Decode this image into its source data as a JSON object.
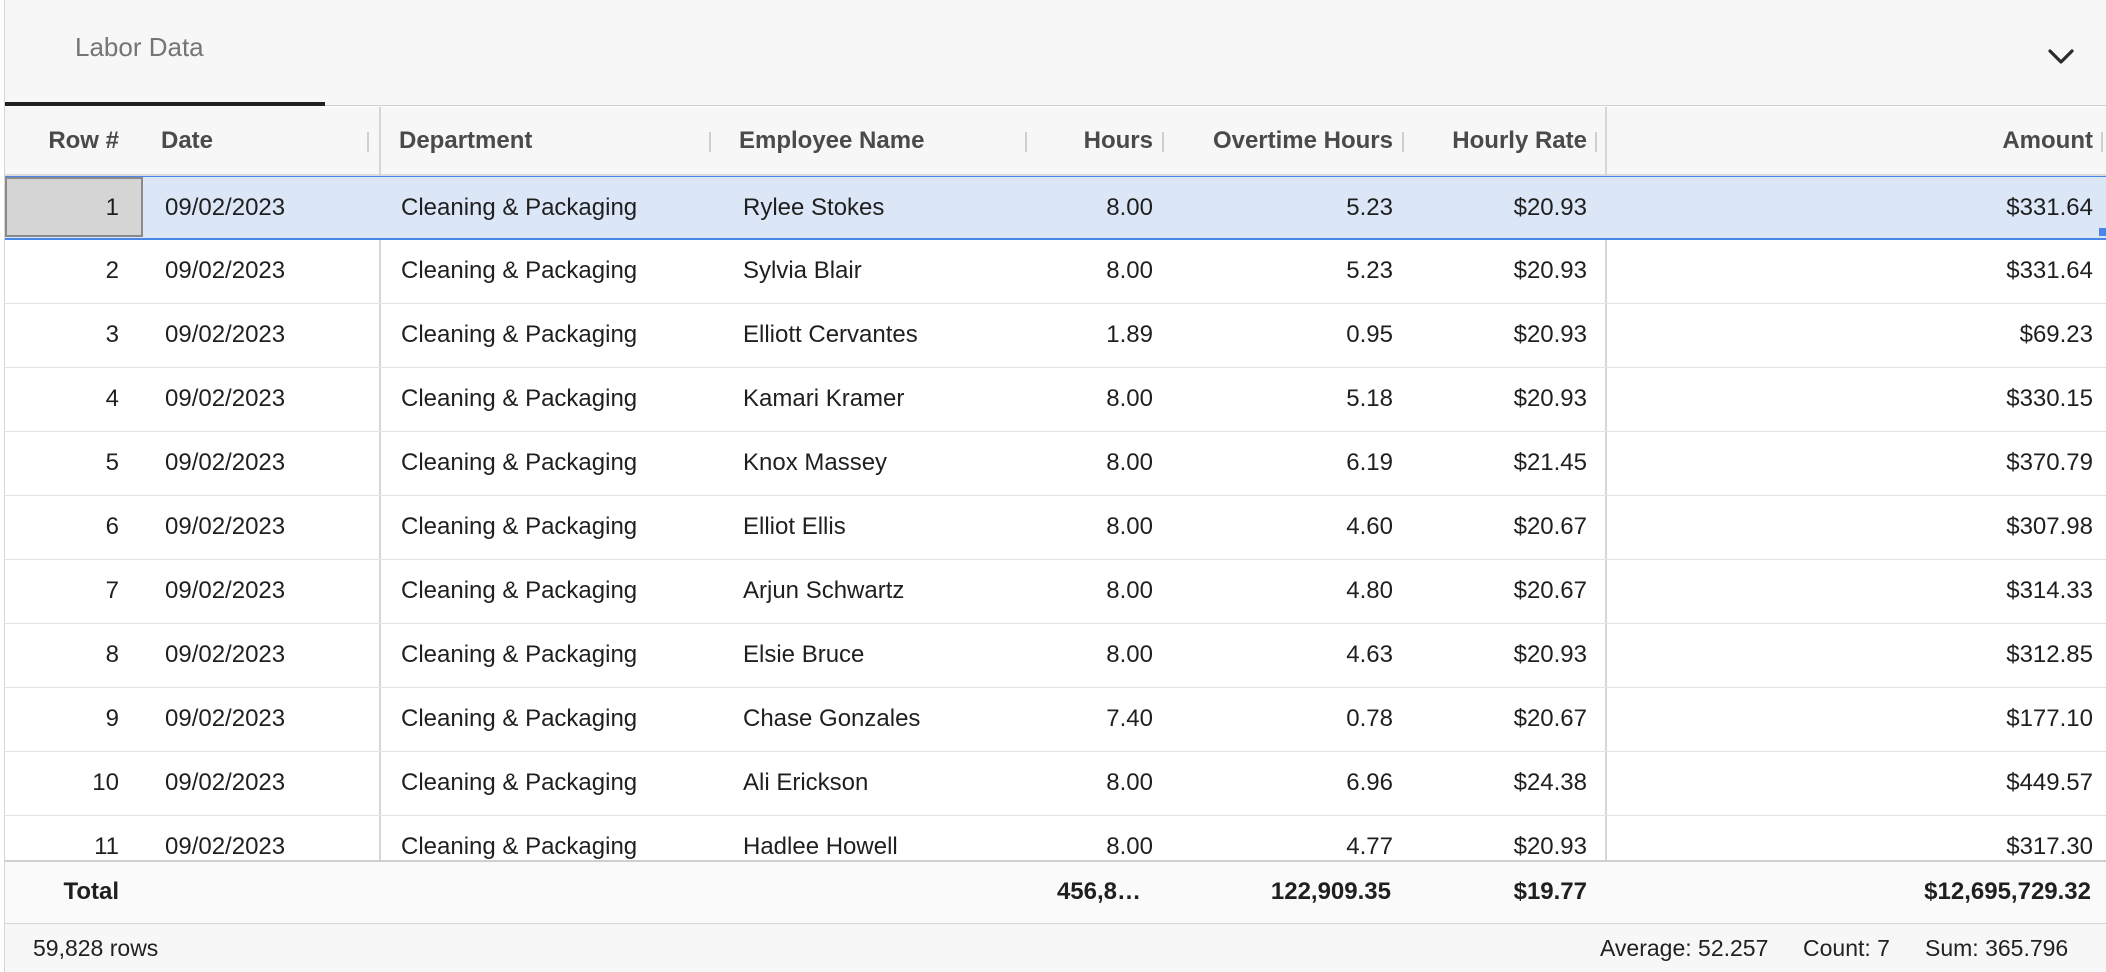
{
  "tabs": [
    {
      "label": "Labor Data",
      "active": true
    }
  ],
  "columns": {
    "row_num": "Row #",
    "date": "Date",
    "department": "Department",
    "employee": "Employee Name",
    "hours": "Hours",
    "overtime": "Overtime Hours",
    "rate": "Hourly Rate",
    "amount": "Amount"
  },
  "rows": [
    {
      "n": "1",
      "date": "09/02/2023",
      "dept": "Cleaning & Packaging",
      "name": "Rylee Stokes",
      "hours": "8.00",
      "ot": "5.23",
      "rate": "$20.93",
      "amount": "$331.64"
    },
    {
      "n": "2",
      "date": "09/02/2023",
      "dept": "Cleaning & Packaging",
      "name": "Sylvia Blair",
      "hours": "8.00",
      "ot": "5.23",
      "rate": "$20.93",
      "amount": "$331.64"
    },
    {
      "n": "3",
      "date": "09/02/2023",
      "dept": "Cleaning & Packaging",
      "name": "Elliott Cervantes",
      "hours": "1.89",
      "ot": "0.95",
      "rate": "$20.93",
      "amount": "$69.23"
    },
    {
      "n": "4",
      "date": "09/02/2023",
      "dept": "Cleaning & Packaging",
      "name": "Kamari Kramer",
      "hours": "8.00",
      "ot": "5.18",
      "rate": "$20.93",
      "amount": "$330.15"
    },
    {
      "n": "5",
      "date": "09/02/2023",
      "dept": "Cleaning & Packaging",
      "name": "Knox Massey",
      "hours": "8.00",
      "ot": "6.19",
      "rate": "$21.45",
      "amount": "$370.79"
    },
    {
      "n": "6",
      "date": "09/02/2023",
      "dept": "Cleaning & Packaging",
      "name": "Elliot Ellis",
      "hours": "8.00",
      "ot": "4.60",
      "rate": "$20.67",
      "amount": "$307.98"
    },
    {
      "n": "7",
      "date": "09/02/2023",
      "dept": "Cleaning & Packaging",
      "name": "Arjun Schwartz",
      "hours": "8.00",
      "ot": "4.80",
      "rate": "$20.67",
      "amount": "$314.33"
    },
    {
      "n": "8",
      "date": "09/02/2023",
      "dept": "Cleaning & Packaging",
      "name": "Elsie Bruce",
      "hours": "8.00",
      "ot": "4.63",
      "rate": "$20.93",
      "amount": "$312.85"
    },
    {
      "n": "9",
      "date": "09/02/2023",
      "dept": "Cleaning & Packaging",
      "name": "Chase Gonzales",
      "hours": "7.40",
      "ot": "0.78",
      "rate": "$20.67",
      "amount": "$177.10"
    },
    {
      "n": "10",
      "date": "09/02/2023",
      "dept": "Cleaning & Packaging",
      "name": "Ali Erickson",
      "hours": "8.00",
      "ot": "6.96",
      "rate": "$24.38",
      "amount": "$449.57"
    },
    {
      "n": "11",
      "date": "09/02/2023",
      "dept": "Cleaning & Packaging",
      "name": "Hadlee Howell",
      "hours": "8.00",
      "ot": "4.77",
      "rate": "$20.93",
      "amount": "$317.30"
    }
  ],
  "selected_row": 1,
  "totals": {
    "label": "Total",
    "hours": "456,8…",
    "overtime": "122,909.35",
    "rate": "$19.77",
    "amount": "$12,695,729.32"
  },
  "status": {
    "row_count": "59,828 rows",
    "average": "Average: 52.257",
    "count": "Count: 7",
    "sum": "Sum: 365.796"
  },
  "icons": {
    "collapse": "chevron-down-icon",
    "drag": "drag-handle-icon"
  },
  "colors": {
    "selection": "#dbe7f7",
    "selection_border": "#4a86e8",
    "active_tab_underline": "#212121"
  }
}
